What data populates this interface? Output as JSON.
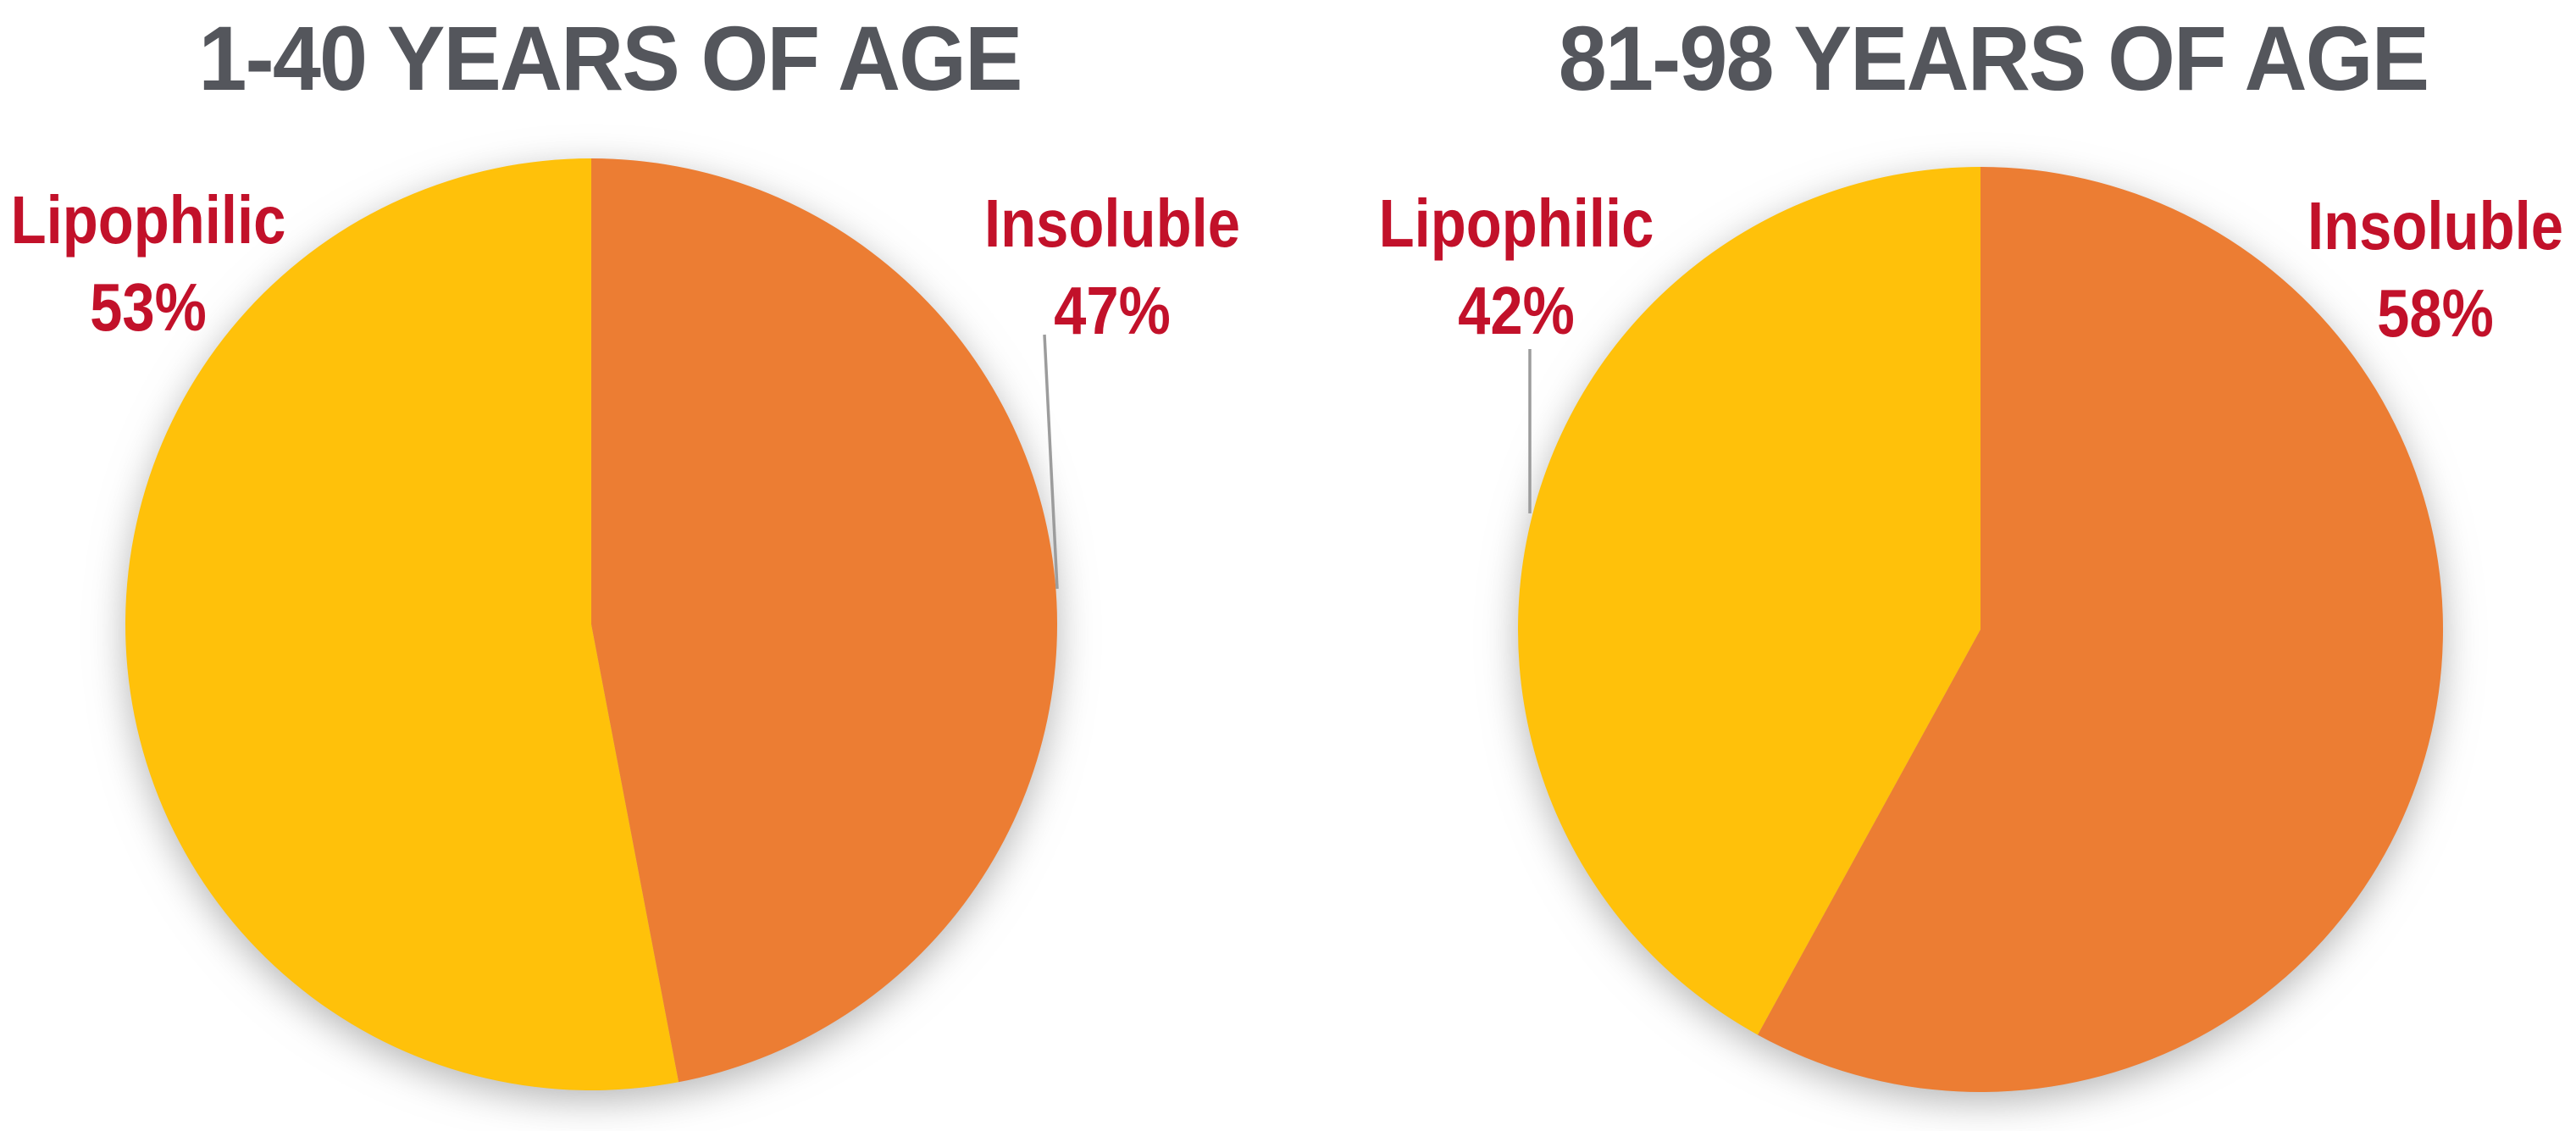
{
  "page": {
    "background_color": "#FFFFFF",
    "title_color": "#54565C",
    "label_color": "#C2112A",
    "leader_line_color": "#9C9C9C"
  },
  "chart_data": [
    {
      "type": "pie",
      "title": "1-40 YEARS OF AGE",
      "start_angle_deg": 0,
      "direction": "clockwise",
      "legend_position": "none",
      "slices": [
        {
          "name": "Insoluble",
          "value": 47,
          "pct_label": "47%",
          "color": "#EC7D33"
        },
        {
          "name": "Lipophilic",
          "value": 53,
          "pct_label": "53%",
          "color": "#FFC10A"
        }
      ]
    },
    {
      "type": "pie",
      "title": "81-98 YEARS OF AGE",
      "start_angle_deg": 0,
      "direction": "clockwise",
      "legend_position": "none",
      "slices": [
        {
          "name": "Insoluble",
          "value": 58,
          "pct_label": "58%",
          "color": "#EC7D33"
        },
        {
          "name": "Lipophilic",
          "value": 42,
          "pct_label": "42%",
          "color": "#FFC10A"
        }
      ]
    }
  ]
}
